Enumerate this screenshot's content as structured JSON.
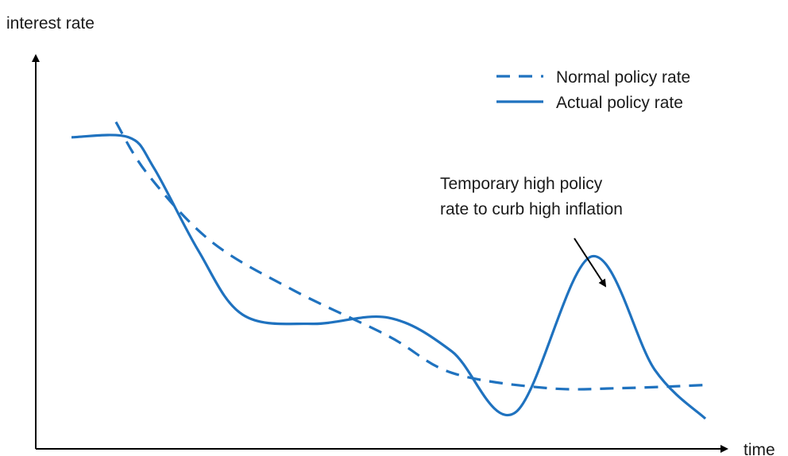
{
  "chart_data": {
    "type": "line",
    "title": "",
    "xlabel": "time",
    "ylabel": "interest rate",
    "grid": false,
    "legend_position": "top-right",
    "colors": {
      "series": "#1f72bf",
      "axes": "#000000",
      "text": "#1a1a1a"
    },
    "series": [
      {
        "name": "Normal policy rate",
        "style": "dashed",
        "points": [
          [
            0.07,
            0.97
          ],
          [
            0.12,
            0.8
          ],
          [
            0.22,
            0.58
          ],
          [
            0.35,
            0.42
          ],
          [
            0.5,
            0.27
          ],
          [
            0.6,
            0.15
          ],
          [
            0.75,
            0.1
          ],
          [
            0.87,
            0.1
          ],
          [
            1.0,
            0.11
          ]
        ]
      },
      {
        "name": "Actual policy rate",
        "style": "solid",
        "points": [
          [
            0.0,
            0.92
          ],
          [
            0.09,
            0.92
          ],
          [
            0.13,
            0.82
          ],
          [
            0.2,
            0.55
          ],
          [
            0.27,
            0.34
          ],
          [
            0.38,
            0.31
          ],
          [
            0.5,
            0.33
          ],
          [
            0.6,
            0.22
          ],
          [
            0.7,
            0.02
          ],
          [
            0.82,
            0.53
          ],
          [
            0.92,
            0.16
          ],
          [
            1.0,
            0.0
          ]
        ]
      }
    ],
    "annotations": [
      {
        "text_lines": [
          "Temporary high policy",
          "rate to curb high inflation"
        ],
        "points_to": [
          0.82,
          0.53
        ]
      }
    ]
  }
}
